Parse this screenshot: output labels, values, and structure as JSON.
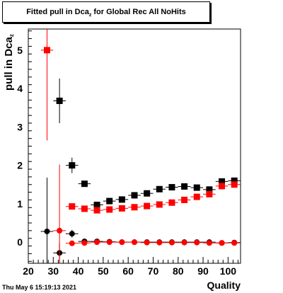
{
  "title": {
    "prefix": "Fitted pull in Dca",
    "sub": "z",
    "suffix": " for Global Rec All NoHits"
  },
  "timestamp": "Thu May  6 15:19:13 2021",
  "chart_data": {
    "type": "scatter",
    "title": "Fitted pull in Dca_z for Global Rec All NoHits",
    "xlabel": "Quality",
    "ylabel": "pull in Dca_z",
    "xlim": [
      20,
      105
    ],
    "ylim": [
      -0.55,
      5.55
    ],
    "x_ticks": [
      20,
      30,
      40,
      50,
      60,
      70,
      80,
      90,
      100
    ],
    "y_ticks": [
      0,
      1,
      2,
      3,
      4,
      5
    ],
    "grid": false,
    "series": [
      {
        "marker": "square",
        "color": "#000000",
        "points": [
          {
            "x": 32.5,
            "y": 3.68,
            "yerr": 0.58,
            "xerr": 2.5
          },
          {
            "x": 37.5,
            "y": 2.0,
            "yerr": 0.2,
            "xerr": 2.5
          },
          {
            "x": 42.5,
            "y": 1.52,
            "yerr": 0.05,
            "xerr": 2.5
          },
          {
            "x": 47.5,
            "y": 0.97,
            "yerr": 0.03,
            "xerr": 2.5
          },
          {
            "x": 52.5,
            "y": 1.07,
            "yerr": 0.03,
            "xerr": 2.5
          },
          {
            "x": 57.5,
            "y": 1.11,
            "yerr": 0.03,
            "xerr": 2.5
          },
          {
            "x": 62.5,
            "y": 1.22,
            "yerr": 0.03,
            "xerr": 2.5
          },
          {
            "x": 67.5,
            "y": 1.27,
            "yerr": 0.03,
            "xerr": 2.5
          },
          {
            "x": 72.5,
            "y": 1.38,
            "yerr": 0.03,
            "xerr": 2.5
          },
          {
            "x": 77.5,
            "y": 1.43,
            "yerr": 0.03,
            "xerr": 2.5
          },
          {
            "x": 82.5,
            "y": 1.45,
            "yerr": 0.03,
            "xerr": 2.5
          },
          {
            "x": 87.5,
            "y": 1.42,
            "yerr": 0.03,
            "xerr": 2.5
          },
          {
            "x": 92.5,
            "y": 1.37,
            "yerr": 0.03,
            "xerr": 2.5
          },
          {
            "x": 97.5,
            "y": 1.58,
            "yerr": 0.03,
            "xerr": 2.5
          },
          {
            "x": 102.5,
            "y": 1.6,
            "yerr": 0.03,
            "xerr": 2.5
          }
        ]
      },
      {
        "marker": "square",
        "color": "#ff0000",
        "points": [
          {
            "x": 27.5,
            "y": 5.0,
            "yerr": 2.35,
            "xerr": 2.5
          },
          {
            "x": 37.5,
            "y": 0.93,
            "yerr": 0.04,
            "xerr": 2.5
          },
          {
            "x": 42.5,
            "y": 0.87,
            "yerr": 0.03,
            "xerr": 2.5
          },
          {
            "x": 47.5,
            "y": 0.83,
            "yerr": 0.03,
            "xerr": 2.5
          },
          {
            "x": 52.5,
            "y": 0.85,
            "yerr": 0.03,
            "xerr": 2.5
          },
          {
            "x": 57.5,
            "y": 0.88,
            "yerr": 0.03,
            "xerr": 2.5
          },
          {
            "x": 62.5,
            "y": 0.91,
            "yerr": 0.03,
            "xerr": 2.5
          },
          {
            "x": 67.5,
            "y": 0.94,
            "yerr": 0.03,
            "xerr": 2.5
          },
          {
            "x": 72.5,
            "y": 0.98,
            "yerr": 0.03,
            "xerr": 2.5
          },
          {
            "x": 77.5,
            "y": 1.03,
            "yerr": 0.03,
            "xerr": 2.5
          },
          {
            "x": 82.5,
            "y": 1.1,
            "yerr": 0.03,
            "xerr": 2.5
          },
          {
            "x": 87.5,
            "y": 1.18,
            "yerr": 0.03,
            "xerr": 2.5
          },
          {
            "x": 92.5,
            "y": 1.25,
            "yerr": 0.03,
            "xerr": 2.5
          },
          {
            "x": 97.5,
            "y": 1.46,
            "yerr": 0.03,
            "xerr": 2.5
          },
          {
            "x": 102.5,
            "y": 1.5,
            "yerr": 0.03,
            "xerr": 2.5
          }
        ]
      },
      {
        "marker": "circle",
        "color": "#000000",
        "points": [
          {
            "x": 27.5,
            "y": 0.28,
            "yerr": 1.4,
            "xerr": 2.5
          },
          {
            "x": 32.5,
            "y": -0.28,
            "yerr": 0.25,
            "xerr": 2.5
          },
          {
            "x": 37.5,
            "y": 0.22,
            "yerr": 0.1,
            "xerr": 2.5
          },
          {
            "x": 42.5,
            "y": 0.02,
            "yerr": 0.04,
            "xerr": 2.5
          },
          {
            "x": 47.5,
            "y": 0.02,
            "yerr": 0.03,
            "xerr": 2.5
          },
          {
            "x": 52.5,
            "y": 0.01,
            "yerr": 0.02,
            "xerr": 2.5
          },
          {
            "x": 57.5,
            "y": 0.0,
            "yerr": 0.02,
            "xerr": 2.5
          },
          {
            "x": 62.5,
            "y": 0.0,
            "yerr": 0.02,
            "xerr": 2.5
          },
          {
            "x": 67.5,
            "y": 0.0,
            "yerr": 0.02,
            "xerr": 2.5
          },
          {
            "x": 72.5,
            "y": 0.0,
            "yerr": 0.02,
            "xerr": 2.5
          },
          {
            "x": 77.5,
            "y": 0.0,
            "yerr": 0.02,
            "xerr": 2.5
          },
          {
            "x": 82.5,
            "y": 0.0,
            "yerr": 0.02,
            "xerr": 2.5
          },
          {
            "x": 87.5,
            "y": 0.0,
            "yerr": 0.02,
            "xerr": 2.5
          },
          {
            "x": 92.5,
            "y": 0.0,
            "yerr": 0.02,
            "xerr": 2.5
          },
          {
            "x": 97.5,
            "y": -0.02,
            "yerr": 0.02,
            "xerr": 2.5
          },
          {
            "x": 102.5,
            "y": -0.01,
            "yerr": 0.02,
            "xerr": 2.5
          }
        ]
      },
      {
        "marker": "circle",
        "color": "#ff0000",
        "points": [
          {
            "x": 32.5,
            "y": 0.3,
            "yerr": 1.72,
            "xerr": 2.5
          },
          {
            "x": 37.5,
            "y": -0.03,
            "yerr": 0.03,
            "xerr": 2.5
          },
          {
            "x": 42.5,
            "y": -0.02,
            "yerr": 0.02,
            "xerr": 2.5
          },
          {
            "x": 47.5,
            "y": 0.0,
            "yerr": 0.02,
            "xerr": 2.5
          },
          {
            "x": 52.5,
            "y": 0.0,
            "yerr": 0.02,
            "xerr": 2.5
          },
          {
            "x": 57.5,
            "y": 0.0,
            "yerr": 0.02,
            "xerr": 2.5
          },
          {
            "x": 62.5,
            "y": 0.0,
            "yerr": 0.02,
            "xerr": 2.5
          },
          {
            "x": 67.5,
            "y": -0.01,
            "yerr": 0.02,
            "xerr": 2.5
          },
          {
            "x": 72.5,
            "y": -0.01,
            "yerr": 0.02,
            "xerr": 2.5
          },
          {
            "x": 77.5,
            "y": -0.01,
            "yerr": 0.02,
            "xerr": 2.5
          },
          {
            "x": 82.5,
            "y": -0.01,
            "yerr": 0.02,
            "xerr": 2.5
          },
          {
            "x": 87.5,
            "y": -0.01,
            "yerr": 0.02,
            "xerr": 2.5
          },
          {
            "x": 92.5,
            "y": -0.02,
            "yerr": 0.02,
            "xerr": 2.5
          },
          {
            "x": 97.5,
            "y": -0.02,
            "yerr": 0.02,
            "xerr": 2.5
          },
          {
            "x": 102.5,
            "y": -0.02,
            "yerr": 0.02,
            "xerr": 2.5
          }
        ]
      }
    ]
  }
}
